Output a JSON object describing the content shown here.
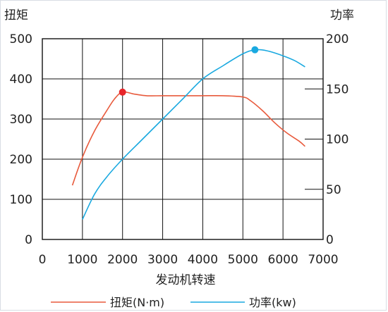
{
  "chart_data": {
    "type": "line",
    "xlabel": "发动机转速",
    "ylabel_left": "扭矩",
    "ylabel_right": "功率",
    "xlim": [
      0,
      7000
    ],
    "ylim_left": [
      0,
      500
    ],
    "ylim_right": [
      0,
      200
    ],
    "x_ticks": [
      "0",
      "1000",
      "2000",
      "3000",
      "4000",
      "5000",
      "6000",
      "7000"
    ],
    "y_ticks_left": [
      "0",
      "100",
      "200",
      "300",
      "400",
      "500"
    ],
    "y_ticks_right": [
      "0",
      "50",
      "100",
      "150",
      "200"
    ],
    "grid": true,
    "legend_position": "bottom",
    "series": [
      {
        "name": "扭矩(N·m)",
        "axis": "left",
        "color": "#e85a3c",
        "x": [
          750,
          1000,
          1300,
          1600,
          1800,
          2000,
          2300,
          2600,
          3000,
          3500,
          4000,
          4500,
          5000,
          5200,
          5500,
          5800,
          6100,
          6400,
          6550
        ],
        "y": [
          135,
          205,
          270,
          320,
          350,
          367,
          362,
          358,
          358,
          358,
          358,
          358,
          355,
          345,
          320,
          290,
          265,
          245,
          232
        ],
        "marker": {
          "x": 2000,
          "y": 367,
          "color": "#e8262a"
        }
      },
      {
        "name": "功率(kw)",
        "axis": "right",
        "color": "#1aa9e0",
        "x": [
          1000,
          1300,
          1600,
          2000,
          2500,
          3000,
          3500,
          4000,
          4500,
          5000,
          5300,
          5600,
          6000,
          6300,
          6550
        ],
        "y": [
          20,
          45,
          62,
          80,
          100,
          120,
          140,
          160,
          173,
          185,
          189,
          188,
          183,
          178,
          172
        ],
        "marker": {
          "x": 5300,
          "y": 189,
          "color": "#1aa9e0"
        }
      }
    ]
  }
}
